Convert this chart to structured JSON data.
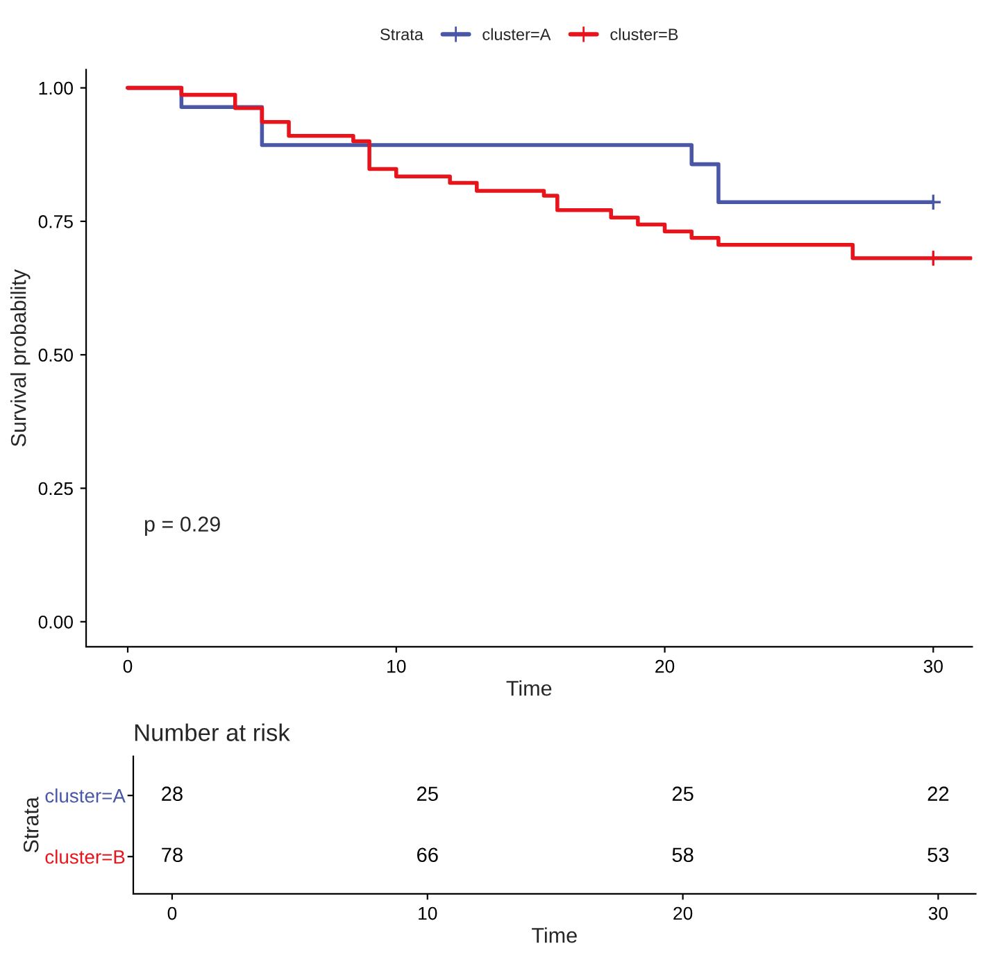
{
  "chart_data": [
    {
      "type": "step",
      "xlabel": "Time",
      "ylabel": "Survival probability",
      "legend_title": "Strata",
      "legend": "top",
      "xlim": [
        -1.55,
        31.45
      ],
      "xticks": [
        0,
        10,
        20,
        30
      ],
      "ylim": [
        -0.047,
        1.034
      ],
      "yticks": [
        {
          "value": 0,
          "label": "0.00"
        },
        {
          "value": 0.25,
          "label": "0.25"
        },
        {
          "value": 0.5,
          "label": "0.50"
        },
        {
          "value": 0.75,
          "label": "0.75"
        },
        {
          "value": 1,
          "label": "1.00"
        }
      ],
      "grid": false,
      "annotations": [
        "p = 0.29"
      ],
      "series": [
        {
          "name": "cluster=A",
          "color": "#4a56a6",
          "x": [
            0,
            2,
            5,
            21,
            22,
            30
          ],
          "values": [
            1.0,
            0.964,
            0.893,
            0.857,
            0.786,
            0.786
          ]
        },
        {
          "name": "cluster=B",
          "color": "#e8141c",
          "x": [
            0,
            2,
            4,
            5,
            6,
            8.4,
            9,
            10,
            12,
            13,
            15.5,
            16,
            18,
            19,
            20,
            21,
            22,
            27,
            31.4
          ],
          "values": [
            1.0,
            0.987,
            0.962,
            0.936,
            0.91,
            0.9,
            0.848,
            0.834,
            0.822,
            0.807,
            0.798,
            0.771,
            0.757,
            0.744,
            0.731,
            0.719,
            0.706,
            0.681,
            0.681
          ]
        },
        {
          "type": "scatter",
          "marker": "cross",
          "color": "#4a56a6",
          "x": [
            30
          ],
          "values": [
            0.786
          ]
        },
        {
          "type": "scatter",
          "marker": "cross",
          "color": "#e8141c",
          "x": [
            30
          ],
          "values": [
            0.681
          ]
        }
      ]
    },
    {
      "type": "heatmap",
      "title": "Number at risk",
      "xlabel": "Time",
      "ylabel": "Strata",
      "data_labels": true,
      "x": [
        0,
        10,
        20,
        30
      ],
      "xlim": [
        -1.52,
        31.47
      ],
      "xticks": [
        0,
        10,
        20,
        30
      ],
      "y_categories": [
        "cluster=A",
        "cluster=B"
      ],
      "colors": [
        "#4a56a6",
        "#e8141c"
      ],
      "cells": [
        [
          28,
          25,
          25,
          22
        ],
        [
          78,
          66,
          58,
          53
        ]
      ]
    }
  ]
}
